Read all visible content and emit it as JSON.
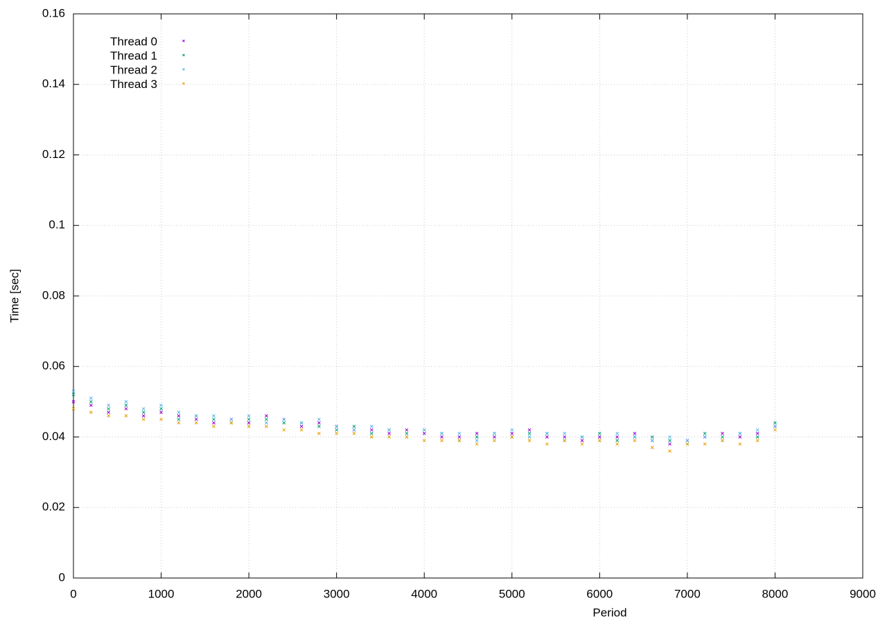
{
  "chart_data": {
    "type": "scatter",
    "x_label": "Period",
    "y_label": "Time [sec]",
    "x": [
      0,
      200,
      400,
      600,
      800,
      1000,
      1200,
      1400,
      1600,
      1800,
      2000,
      2200,
      2400,
      2600,
      2800,
      3000,
      3200,
      3400,
      3600,
      3800,
      4000,
      4200,
      4400,
      4600,
      4800,
      5000,
      5200,
      5400,
      5600,
      5800,
      6000,
      6200,
      6400,
      6600,
      6800,
      7000,
      7200,
      7400,
      7600,
      7800,
      8000
    ],
    "series": [
      {
        "name": "Thread 0",
        "color": "#9400d3",
        "values": [
          0.05,
          0.049,
          0.047,
          0.048,
          0.046,
          0.047,
          0.046,
          0.045,
          0.044,
          0.045,
          0.044,
          0.046,
          0.045,
          0.043,
          0.044,
          0.043,
          0.042,
          0.042,
          0.041,
          0.042,
          0.041,
          0.04,
          0.04,
          0.041,
          0.04,
          0.041,
          0.042,
          0.04,
          0.04,
          0.039,
          0.04,
          0.04,
          0.041,
          0.039,
          0.038,
          0.039,
          0.04,
          0.041,
          0.04,
          0.041,
          0.043
        ]
      },
      {
        "name": "Thread 1",
        "color": "#009e73",
        "values": [
          0.052,
          0.05,
          0.048,
          0.049,
          0.047,
          0.048,
          0.045,
          0.046,
          0.045,
          0.044,
          0.045,
          0.045,
          0.044,
          0.044,
          0.043,
          0.042,
          0.043,
          0.041,
          0.042,
          0.041,
          0.042,
          0.041,
          0.039,
          0.04,
          0.041,
          0.04,
          0.041,
          0.041,
          0.039,
          0.04,
          0.041,
          0.039,
          0.04,
          0.04,
          0.039,
          0.038,
          0.041,
          0.04,
          0.041,
          0.04,
          0.044
        ]
      },
      {
        "name": "Thread 2",
        "color": "#56b4e9",
        "values": [
          0.053,
          0.051,
          0.049,
          0.05,
          0.048,
          0.049,
          0.047,
          0.046,
          0.046,
          0.045,
          0.046,
          0.044,
          0.045,
          0.044,
          0.045,
          0.043,
          0.042,
          0.043,
          0.042,
          0.04,
          0.042,
          0.041,
          0.041,
          0.039,
          0.041,
          0.042,
          0.04,
          0.041,
          0.041,
          0.04,
          0.039,
          0.041,
          0.04,
          0.039,
          0.04,
          0.039,
          0.04,
          0.039,
          0.041,
          0.042,
          0.043
        ]
      },
      {
        "name": "Thread 3",
        "color": "#e69f00",
        "values": [
          0.048,
          0.047,
          0.046,
          0.046,
          0.045,
          0.045,
          0.044,
          0.044,
          0.043,
          0.044,
          0.043,
          0.043,
          0.042,
          0.042,
          0.041,
          0.041,
          0.041,
          0.04,
          0.04,
          0.04,
          0.039,
          0.039,
          0.039,
          0.038,
          0.039,
          0.04,
          0.039,
          0.038,
          0.039,
          0.038,
          0.039,
          0.038,
          0.039,
          0.037,
          0.036,
          0.038,
          0.038,
          0.039,
          0.038,
          0.039,
          0.042
        ]
      }
    ],
    "xlim": [
      0,
      9000
    ],
    "xticks": [
      0,
      1000,
      2000,
      3000,
      4000,
      5000,
      6000,
      7000,
      8000,
      9000
    ],
    "ylim": [
      0,
      0.16
    ],
    "yticks": [
      0,
      0.02,
      0.04,
      0.06,
      0.08,
      0.1,
      0.12,
      0.14,
      0.16
    ],
    "grid": true,
    "legend": "top-left"
  }
}
